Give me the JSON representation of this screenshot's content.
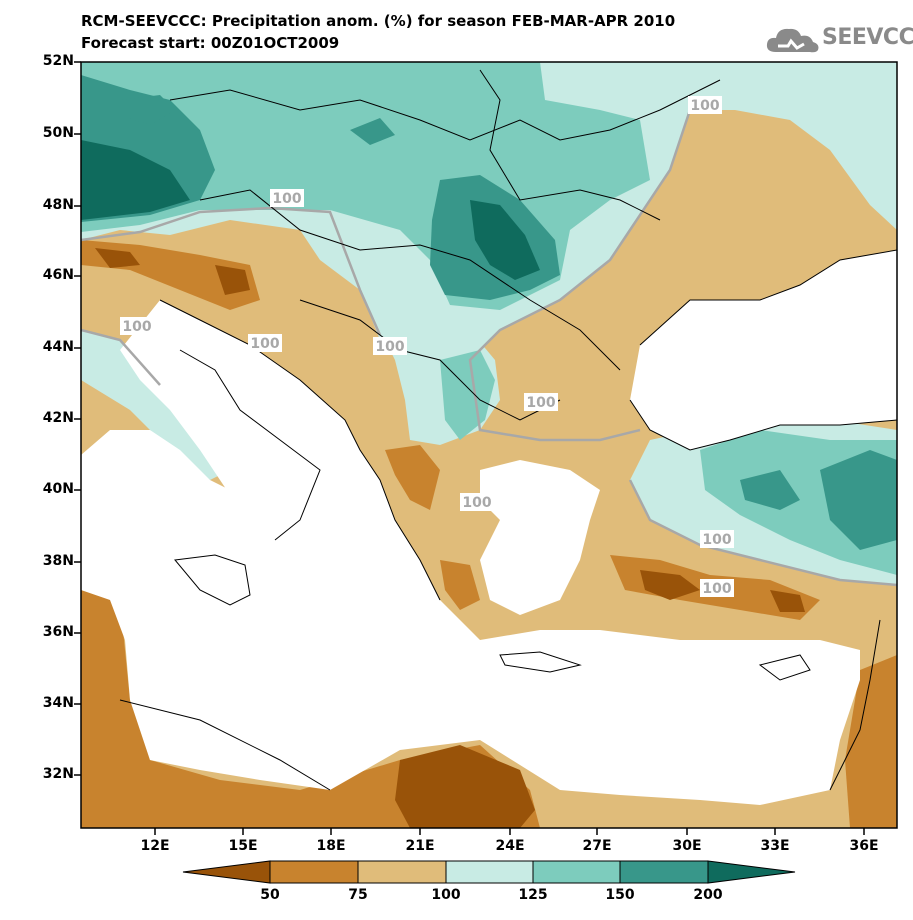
{
  "header": {
    "title_line1": "RCM-SEEVCCC: Precipitation anom. (%) for season FEB-MAR-APR 2010",
    "title_line2": "Forecast start: 00Z01OCT2009"
  },
  "logo": {
    "text": "SEEVCCC",
    "icon": "cloud-icon"
  },
  "map": {
    "lat_labels": [
      "52N",
      "50N",
      "48N",
      "46N",
      "44N",
      "42N",
      "40N",
      "38N",
      "36N",
      "34N",
      "32N"
    ],
    "lon_labels": [
      "12E",
      "15E",
      "18E",
      "21E",
      "24E",
      "27E",
      "30E",
      "33E",
      "36E"
    ],
    "contour_labels": [
      "100",
      "100",
      "100",
      "100",
      "100",
      "100",
      "100",
      "100",
      "100"
    ]
  },
  "colorbar": {
    "ticks": [
      "50",
      "75",
      "100",
      "125",
      "150",
      "200"
    ],
    "colors": [
      "#995309",
      "#c8832e",
      "#e0bc7a",
      "#c8ebe4",
      "#7dccbd",
      "#38978a",
      "#0f6b5d"
    ]
  },
  "colors": {
    "sea": "#ffffff",
    "dry_strong": "#995309",
    "dry": "#c8832e",
    "dry_light": "#e0bc7a",
    "wet_light": "#c8ebe4",
    "wet": "#7dccbd",
    "wet_strong": "#38978a",
    "contour_100": "#a8a8a8"
  }
}
